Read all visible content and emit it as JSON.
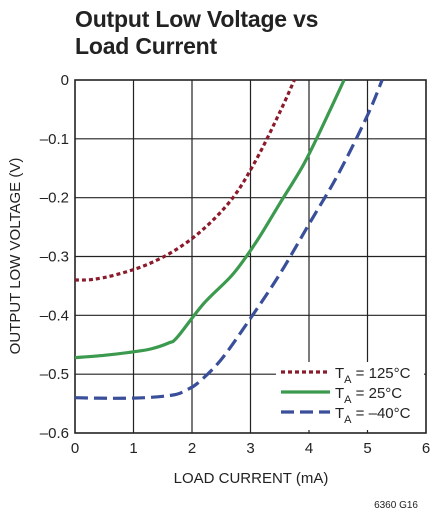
{
  "chart_data": {
    "type": "line",
    "title": "Output Low Voltage vs\nLoad Current",
    "xlabel": "LOAD CURRENT (mA)",
    "ylabel": "OUTPUT LOW VOLTAGE (V)",
    "xlim": [
      0,
      6
    ],
    "ylim": [
      -0.6,
      0
    ],
    "xticks": [
      "0",
      "1",
      "2",
      "3",
      "4",
      "5",
      "6"
    ],
    "yticks": [
      "0",
      "–0.1",
      "–0.2",
      "–0.3",
      "–0.4",
      "–0.5",
      "–0.6"
    ],
    "grid": true,
    "legend_position": "bottom-right",
    "series": [
      {
        "label_main": "T",
        "label_sub": "A",
        "label_rest": " = 125°C",
        "color": "#8b1a2b",
        "dash": "dotted",
        "x": [
          0,
          0.3,
          0.7,
          1.2,
          1.7,
          2.2,
          2.7,
          3.1,
          3.5,
          3.75
        ],
        "y": [
          -0.34,
          -0.339,
          -0.331,
          -0.315,
          -0.29,
          -0.253,
          -0.2,
          -0.135,
          -0.055,
          0
        ]
      },
      {
        "label_main": "T",
        "label_sub": "A",
        "label_rest": " = 25°C",
        "color": "#3b9a4e",
        "dash": "solid",
        "x": [
          0,
          0.5,
          1.0,
          1.3,
          1.6,
          1.75,
          2.2,
          2.7,
          3.1,
          3.5,
          3.9,
          4.2,
          4.6
        ],
        "y": [
          -0.472,
          -0.468,
          -0.462,
          -0.457,
          -0.447,
          -0.437,
          -0.38,
          -0.33,
          -0.275,
          -0.21,
          -0.145,
          -0.085,
          0
        ]
      },
      {
        "label_main": "T",
        "label_sub": "A",
        "label_rest": " = –40°C",
        "color": "#3a4f9a",
        "dash": "dashed",
        "x": [
          0,
          0.6,
          1.2,
          1.7,
          1.9,
          2.1,
          2.5,
          3.0,
          3.5,
          4.0,
          4.5,
          5.0,
          5.25
        ],
        "y": [
          -0.54,
          -0.541,
          -0.54,
          -0.535,
          -0.527,
          -0.515,
          -0.475,
          -0.405,
          -0.33,
          -0.245,
          -0.16,
          -0.06,
          0
        ]
      }
    ]
  },
  "figure_id": "6360 G16"
}
